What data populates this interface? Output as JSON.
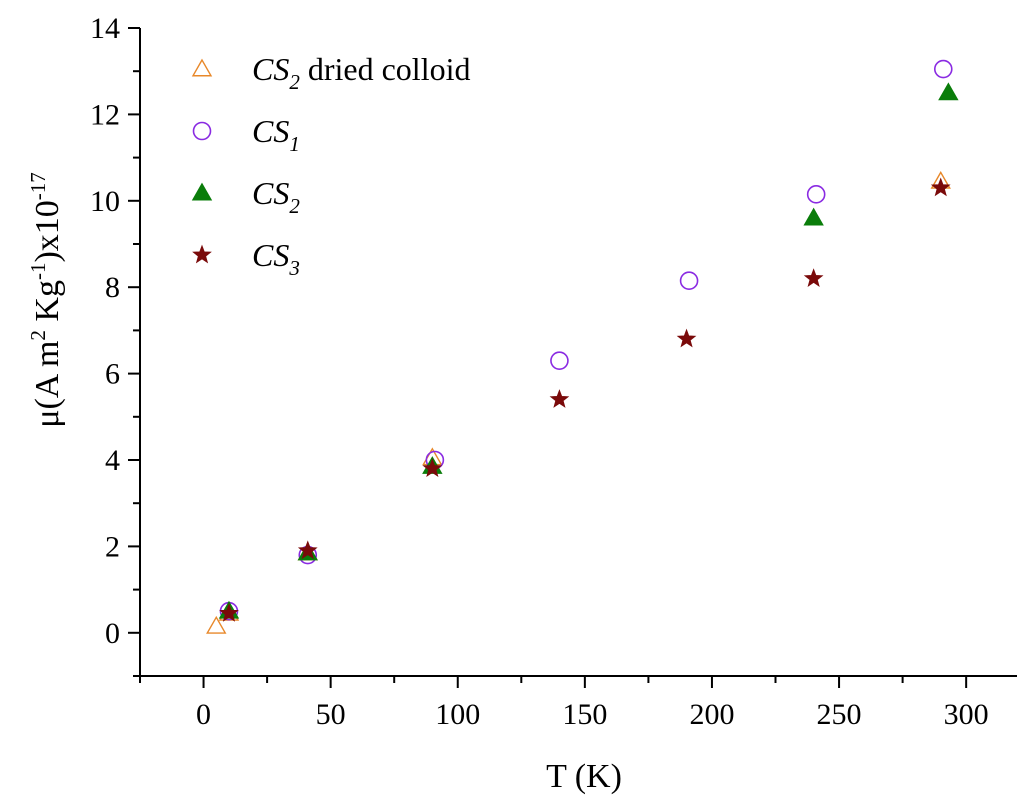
{
  "chart_data": {
    "type": "scatter",
    "title": "",
    "xlabel": "T (K)",
    "ylabel": "μ(A m² Kg⁻¹)x10⁻¹⁷",
    "ylabel_parts": {
      "pre": "μ(A m",
      "sup1": "2",
      "mid": " Kg",
      "sup2": "-1",
      "post": ")x10",
      "sup3": "-17"
    },
    "xlim": [
      -25,
      320
    ],
    "ylim": [
      -1,
      14
    ],
    "xticks": [
      0,
      50,
      100,
      150,
      200,
      250,
      300
    ],
    "yticks": [
      0,
      2,
      4,
      6,
      8,
      10,
      12,
      14
    ],
    "grid": false,
    "legend_position": "top-left",
    "series": [
      {
        "legend_base": "CS",
        "legend_sub": "2",
        "legend_suffix": " dried colloid",
        "marker": "triangle-open",
        "color": "#E8882A",
        "points": [
          [
            5,
            0.15
          ],
          [
            10,
            0.45
          ],
          [
            41,
            1.85
          ],
          [
            90,
            4.05
          ],
          [
            290,
            10.45
          ]
        ]
      },
      {
        "legend_base": "CS",
        "legend_sub": "1",
        "legend_suffix": "",
        "marker": "circle-open",
        "color": "#8A2BE2",
        "points": [
          [
            10,
            0.5
          ],
          [
            41,
            1.8
          ],
          [
            91,
            4.0
          ],
          [
            140,
            6.3
          ],
          [
            191,
            8.15
          ],
          [
            241,
            10.15
          ],
          [
            291,
            13.05
          ]
        ]
      },
      {
        "legend_base": "CS",
        "legend_sub": "2",
        "legend_suffix": "",
        "marker": "triangle-filled",
        "color": "#0A7D0A",
        "points": [
          [
            10,
            0.5
          ],
          [
            41,
            1.85
          ],
          [
            90,
            3.85
          ],
          [
            240,
            9.6
          ],
          [
            293,
            12.5
          ]
        ]
      },
      {
        "legend_base": "CS",
        "legend_sub": "3",
        "legend_suffix": "",
        "marker": "star-filled",
        "color": "#7A0A0A",
        "points": [
          [
            10,
            0.45
          ],
          [
            41,
            1.9
          ],
          [
            90,
            3.8
          ],
          [
            140,
            5.4
          ],
          [
            190,
            6.8
          ],
          [
            240,
            8.2
          ],
          [
            290,
            10.3
          ]
        ]
      }
    ]
  }
}
